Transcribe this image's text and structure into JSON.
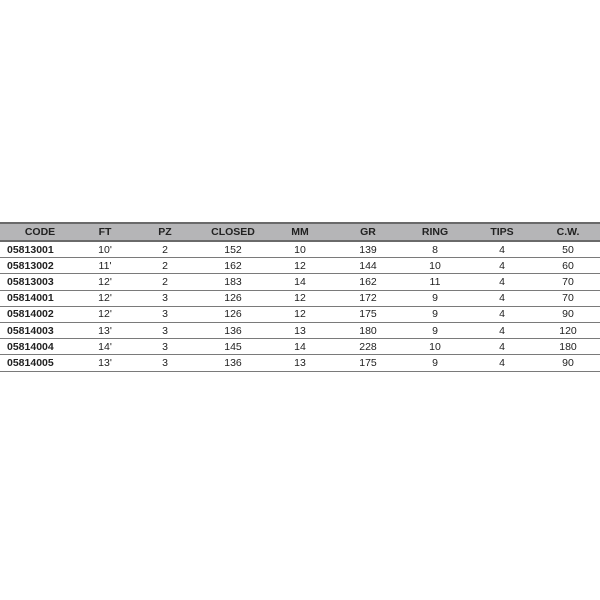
{
  "table": {
    "headers": [
      "CODE",
      "FT",
      "PZ",
      "CLOSED",
      "MM",
      "GR",
      "RING",
      "TIPS",
      "C.W."
    ],
    "rows": [
      [
        "05813001",
        "10'",
        "2",
        "152",
        "10",
        "139",
        "8",
        "4",
        "50"
      ],
      [
        "05813002",
        "11'",
        "2",
        "162",
        "12",
        "144",
        "10",
        "4",
        "60"
      ],
      [
        "05813003",
        "12'",
        "2",
        "183",
        "14",
        "162",
        "11",
        "4",
        "70"
      ],
      [
        "05814001",
        "12'",
        "3",
        "126",
        "12",
        "172",
        "9",
        "4",
        "70"
      ],
      [
        "05814002",
        "12'",
        "3",
        "126",
        "12",
        "175",
        "9",
        "4",
        "90"
      ],
      [
        "05814003",
        "13'",
        "3",
        "136",
        "13",
        "180",
        "9",
        "4",
        "120"
      ],
      [
        "05814004",
        "14'",
        "3",
        "145",
        "14",
        "228",
        "10",
        "4",
        "180"
      ],
      [
        "05814005",
        "13'",
        "3",
        "136",
        "13",
        "175",
        "9",
        "4",
        "90"
      ]
    ]
  }
}
